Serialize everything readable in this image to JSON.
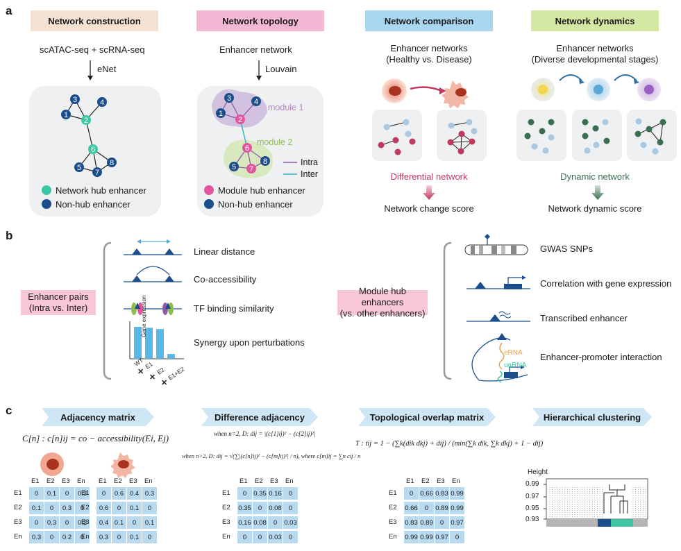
{
  "panels": {
    "a": "a",
    "b": "b",
    "c": "c"
  },
  "section_a": {
    "headers": [
      "Network construction",
      "Network topology",
      "Network comparison",
      "Network dynamics"
    ],
    "construction": {
      "input": "scATAC-seq + scRNA-seq",
      "method": "eNet",
      "legend_hub": "Network hub enhancer",
      "legend_nonhub": "Non-hub enhancer",
      "node_labels": [
        "1",
        "2",
        "3",
        "4",
        "5",
        "6",
        "7",
        "8"
      ]
    },
    "topology": {
      "input": "Enhancer network",
      "method": "Louvain",
      "module1": "module 1",
      "module2": "module 2",
      "intra": "Intra",
      "inter": "Inter",
      "legend_hub": "Module hub enhancer",
      "legend_nonhub": "Non-hub enhancer",
      "node_labels": [
        "1",
        "2",
        "3",
        "4",
        "5",
        "6",
        "7",
        "8"
      ]
    },
    "comparison": {
      "line1": "Enhancer networks",
      "line2": "(Healthy vs. Disease)",
      "network_label": "Differential network",
      "score": "Network change score"
    },
    "dynamics": {
      "line1": "Enhancer networks",
      "line2": "(Diverse developmental stages)",
      "network_label": "Dynamic network",
      "score": "Network dynamic score"
    }
  },
  "section_b": {
    "left_label": {
      "line1": "Enhancer pairs",
      "line2": "(Intra vs. Inter)"
    },
    "left_items": [
      "Linear distance",
      "Co-accessibility",
      "TF binding similarity",
      "Synergy upon perturbations"
    ],
    "bar_chart": {
      "ylabel": "Gene expression",
      "categories": [
        "WT",
        "E1",
        "E2",
        "E1+E2"
      ],
      "values": [
        1.0,
        0.97,
        0.93,
        0.15
      ]
    },
    "right_label": {
      "line1": "Module hub enhancers",
      "line2": "(vs. other enhancers)"
    },
    "right_items": [
      "GWAS SNPs",
      "Correlation with gene expression",
      "Transcribed enhancer",
      "Enhancer-promoter interaction"
    ],
    "erna": "eRNA",
    "uarna": "uaRNA"
  },
  "section_c": {
    "headers": [
      "Adjacency matrix",
      "Difference adjacency",
      "Topological overlap matrix",
      "Hierarchical clustering"
    ],
    "labels": [
      "E1",
      "E2",
      "E3",
      "En"
    ],
    "adj_formula": "C[n] : c[n]ij = co − accessibility(Ei, Ej)",
    "diff_formula_1": "when n=2, D: dij = |(c[1]ij)² − (c[2]ij)²|",
    "diff_formula_2": "when n>2, D: dij = √(∑|(c[n]ij)² − (c[m]ij)²| / n), where c[m]ij = ∑n cij / n",
    "tom_formula": "T : tij = 1 − (∑k(dik dkj) + dij) / (min(∑k dik, ∑k dkj) + 1 − dij)",
    "matrix_healthy": [
      [
        "0",
        "0.1",
        "0",
        "0.3"
      ],
      [
        "0.1",
        "0",
        "0.3",
        "0"
      ],
      [
        "0",
        "0.3",
        "0",
        "0.2"
      ],
      [
        "0.3",
        "0",
        "0.2",
        "0"
      ]
    ],
    "matrix_disease": [
      [
        "0",
        "0.6",
        "0.4",
        "0.3"
      ],
      [
        "0.6",
        "0",
        "0.1",
        "0"
      ],
      [
        "0.4",
        "0.1",
        "0",
        "0.1"
      ],
      [
        "0.3",
        "0",
        "0.1",
        "0"
      ]
    ],
    "matrix_diff": [
      [
        "0",
        "0.35",
        "0.16",
        "0"
      ],
      [
        "0.35",
        "0",
        "0.08",
        "0"
      ],
      [
        "0.16",
        "0.08",
        "0",
        "0.03"
      ],
      [
        "0",
        "0",
        "0.03",
        "0"
      ]
    ],
    "matrix_tom": [
      [
        "0",
        "0.66",
        "0.83",
        "0.99"
      ],
      [
        "0.66",
        "0",
        "0.89",
        "0.99"
      ],
      [
        "0.83",
        "0.89",
        "0",
        "0.97"
      ],
      [
        "0.99",
        "0.99",
        "0.97",
        "0"
      ]
    ],
    "dendro": {
      "ylabel": "Height",
      "ticks": [
        "0.99",
        "0.97",
        "0.95",
        "0.93"
      ]
    }
  },
  "colors": {
    "hub": "#3cc6a3",
    "nonhub": "#1c4e8c",
    "module_hub": "#e2569e",
    "intra": "#8a5aa8",
    "inter": "#2ab0c2",
    "accent_pink": "#c0395e",
    "accent_green": "#3b6e50",
    "bar": "#58b6e8"
  }
}
